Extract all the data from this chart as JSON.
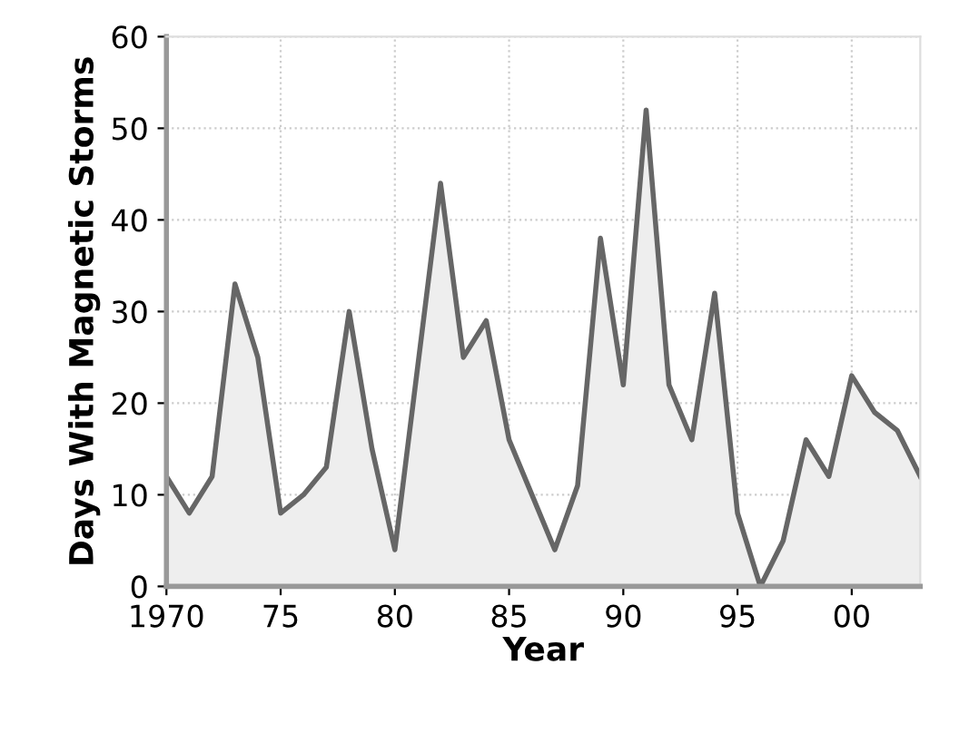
{
  "chart_data": {
    "type": "area",
    "xlabel": "Year",
    "ylabel": "Days With Magnetic Storms",
    "x": [
      1970,
      1971,
      1972,
      1973,
      1974,
      1975,
      1976,
      1977,
      1978,
      1979,
      1980,
      1981,
      1982,
      1983,
      1984,
      1985,
      1986,
      1987,
      1988,
      1989,
      1990,
      1991,
      1992,
      1993,
      1994,
      1995,
      1996,
      1997,
      1998,
      1999,
      2000,
      2001,
      2002,
      2003
    ],
    "series": [
      {
        "color": "#666666",
        "values": [
          12,
          8,
          12,
          33,
          25,
          8,
          10,
          13,
          30,
          15,
          4,
          24,
          44,
          25,
          29,
          16,
          10,
          4,
          11,
          38,
          22,
          52,
          22,
          16,
          32,
          8,
          0,
          5,
          16,
          12,
          23,
          19,
          17,
          12
        ]
      }
    ],
    "xlim": [
      1970,
      2003
    ],
    "ylim": [
      0,
      60
    ],
    "xticks": [
      1970,
      {
        "value": 1975,
        "label": "75"
      },
      {
        "value": 1980,
        "label": "80"
      },
      {
        "value": 1985,
        "label": "85"
      },
      {
        "value": 1990,
        "label": "90"
      },
      {
        "value": 1995,
        "label": "95"
      },
      {
        "value": 2000,
        "label": "00"
      }
    ],
    "yticks": [
      0,
      10,
      20,
      30,
      40,
      50,
      60
    ],
    "grid": true
  }
}
